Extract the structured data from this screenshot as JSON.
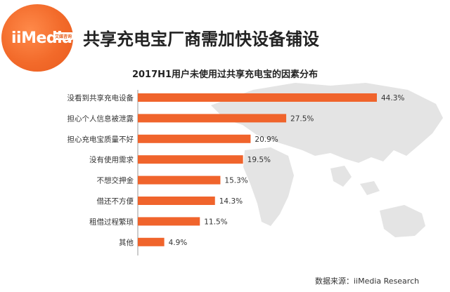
{
  "header": {
    "logo_text": "iiMedia",
    "logo_badge": "艾媒咨询",
    "main_title": "共享充电宝厂商需加快设备铺设"
  },
  "source_note": "数据来源：iiMedia Research",
  "colors": {
    "bar": "#f0642c",
    "logo": "#f26a2a",
    "map": "#dedede"
  },
  "chart_data": {
    "type": "bar",
    "orientation": "horizontal",
    "title": "2017H1用户未使用过共享充电宝的因素分布",
    "categories": [
      "没看到共享充电设备",
      "担心个人信息被泄露",
      "担心充电宝质量不好",
      "没有使用需求",
      "不想交押金",
      "借还不方便",
      "租借过程繁琐",
      "其他"
    ],
    "values": [
      44.3,
      27.5,
      20.9,
      19.5,
      15.3,
      14.3,
      11.5,
      4.9
    ],
    "value_labels": [
      "44.3%",
      "27.5%",
      "20.9%",
      "19.5%",
      "15.3%",
      "14.3%",
      "11.5%",
      "4.9%"
    ],
    "xlim": [
      0,
      50
    ],
    "grid": false,
    "legend": "none"
  }
}
